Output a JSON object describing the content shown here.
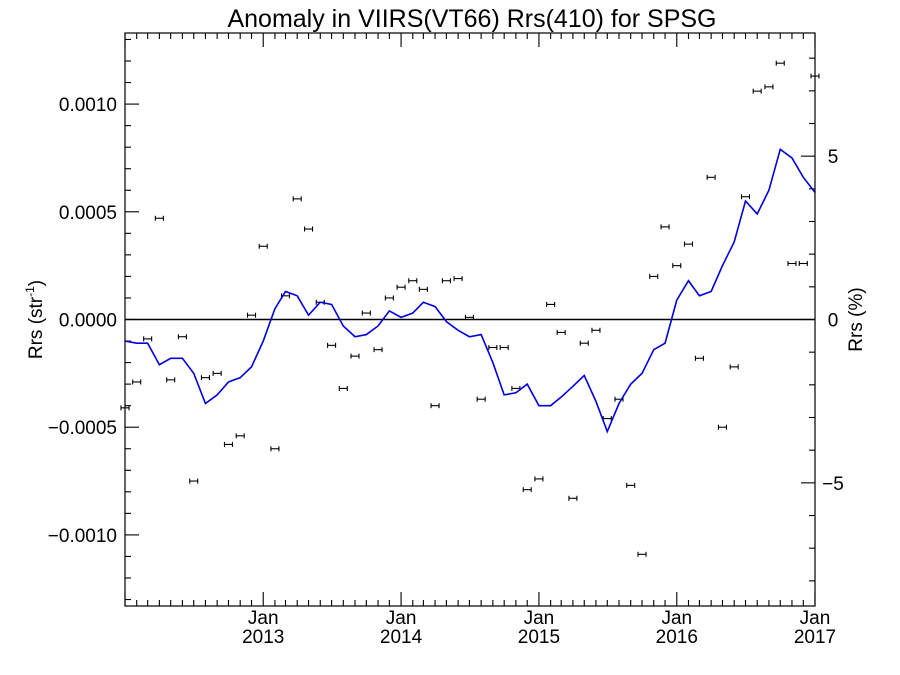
{
  "chart_data": {
    "type": "line",
    "title": "Anomaly in VIIRS(VT66) Rrs(410) for SPSG",
    "ylabel_left": "Rrs (str",
    "ylabel_left_superscript": "-1",
    "ylabel_left_close": ")",
    "ylabel_right": "Rrs (%)",
    "xlim": [
      "2012-01-01",
      "2017-01-01"
    ],
    "ylim_left": [
      -0.00133,
      0.00133
    ],
    "ylim_right": [
      -8.77,
      8.77
    ],
    "x_ticks": [
      {
        "date": "2013-01-01",
        "label_month": "Jan",
        "label_year": "2013"
      },
      {
        "date": "2014-01-01",
        "label_month": "Jan",
        "label_year": "2014"
      },
      {
        "date": "2015-01-01",
        "label_month": "Jan",
        "label_year": "2015"
      },
      {
        "date": "2016-01-01",
        "label_month": "Jan",
        "label_year": "2016"
      },
      {
        "date": "2017-01-01",
        "label_month": "Jan",
        "label_year": "2017"
      }
    ],
    "left_ticks": [
      {
        "value": 0.001,
        "label": "0.0010"
      },
      {
        "value": 0.0005,
        "label": "0.0005"
      },
      {
        "value": 0.0,
        "label": "0.0000"
      },
      {
        "value": -0.0005,
        "label": "−0.0005"
      },
      {
        "value": -0.001,
        "label": "−0.0010"
      }
    ],
    "right_ticks": [
      {
        "value": 5,
        "label": "5"
      },
      {
        "value": 0,
        "label": "0"
      },
      {
        "value": -5,
        "label": "−5"
      }
    ],
    "reference_line": 0,
    "series": [
      {
        "axis": "left",
        "style": "points-with-error-bars",
        "color": "#000000",
        "points": [
          {
            "x": "2012-01-01",
            "y": -0.00041
          },
          {
            "x": "2012-02-01",
            "y": -0.00029
          },
          {
            "x": "2012-03-01",
            "y": -9e-05
          },
          {
            "x": "2012-04-01",
            "y": 0.00047
          },
          {
            "x": "2012-05-01",
            "y": -0.00028
          },
          {
            "x": "2012-06-01",
            "y": -8e-05
          },
          {
            "x": "2012-07-01",
            "y": -0.00075
          },
          {
            "x": "2012-08-01",
            "y": -0.00027
          },
          {
            "x": "2012-09-01",
            "y": -0.00025
          },
          {
            "x": "2012-10-01",
            "y": -0.00058
          },
          {
            "x": "2012-11-01",
            "y": -0.00054
          },
          {
            "x": "2012-12-01",
            "y": 2e-05
          },
          {
            "x": "2013-01-01",
            "y": 0.00034
          },
          {
            "x": "2013-02-01",
            "y": -0.0006
          },
          {
            "x": "2013-03-01",
            "y": 0.00011
          },
          {
            "x": "2013-04-01",
            "y": 0.00056
          },
          {
            "x": "2013-05-01",
            "y": 0.00042
          },
          {
            "x": "2013-06-01",
            "y": 8e-05
          },
          {
            "x": "2013-07-01",
            "y": -0.00012
          },
          {
            "x": "2013-08-01",
            "y": -0.00032
          },
          {
            "x": "2013-09-01",
            "y": -0.00017
          },
          {
            "x": "2013-10-01",
            "y": 3e-05
          },
          {
            "x": "2013-11-01",
            "y": -0.00014
          },
          {
            "x": "2013-12-01",
            "y": 0.0001
          },
          {
            "x": "2014-01-01",
            "y": 0.00015
          },
          {
            "x": "2014-02-01",
            "y": 0.00018
          },
          {
            "x": "2014-03-01",
            "y": 0.00014
          },
          {
            "x": "2014-04-01",
            "y": -0.0004
          },
          {
            "x": "2014-05-01",
            "y": 0.00018
          },
          {
            "x": "2014-06-01",
            "y": 0.00019
          },
          {
            "x": "2014-07-01",
            "y": 1e-05
          },
          {
            "x": "2014-08-01",
            "y": -0.00037
          },
          {
            "x": "2014-09-01",
            "y": -0.00013
          },
          {
            "x": "2014-10-01",
            "y": -0.00013
          },
          {
            "x": "2014-11-01",
            "y": -0.00032
          },
          {
            "x": "2014-12-01",
            "y": -0.00079
          },
          {
            "x": "2015-01-01",
            "y": -0.00074
          },
          {
            "x": "2015-02-01",
            "y": 7e-05
          },
          {
            "x": "2015-03-01",
            "y": -6e-05
          },
          {
            "x": "2015-04-01",
            "y": -0.00083
          },
          {
            "x": "2015-05-01",
            "y": -0.00011
          },
          {
            "x": "2015-06-01",
            "y": -5e-05
          },
          {
            "x": "2015-07-01",
            "y": -0.00046
          },
          {
            "x": "2015-08-01",
            "y": -0.00037
          },
          {
            "x": "2015-09-01",
            "y": -0.00077
          },
          {
            "x": "2015-10-01",
            "y": -0.00109
          },
          {
            "x": "2015-11-01",
            "y": 0.0002
          },
          {
            "x": "2015-12-01",
            "y": 0.00043
          },
          {
            "x": "2016-01-01",
            "y": 0.00025
          },
          {
            "x": "2016-02-01",
            "y": 0.00035
          },
          {
            "x": "2016-03-01",
            "y": -0.00018
          },
          {
            "x": "2016-04-01",
            "y": 0.00066
          },
          {
            "x": "2016-05-01",
            "y": -0.0005
          },
          {
            "x": "2016-06-01",
            "y": -0.00022
          },
          {
            "x": "2016-07-01",
            "y": 0.00057
          },
          {
            "x": "2016-08-01",
            "y": 0.00106
          },
          {
            "x": "2016-09-01",
            "y": 0.00108
          },
          {
            "x": "2016-10-01",
            "y": 0.00119
          },
          {
            "x": "2016-11-01",
            "y": 0.00026
          },
          {
            "x": "2016-12-01",
            "y": 0.00026
          },
          {
            "x": "2017-01-01",
            "y": 0.00113
          }
        ]
      },
      {
        "axis": "left",
        "style": "line",
        "color": "#0000dd",
        "points": [
          {
            "x": "2012-01-01",
            "y": -0.0001
          },
          {
            "x": "2012-02-01",
            "y": -0.00011
          },
          {
            "x": "2012-03-01",
            "y": -0.00011
          },
          {
            "x": "2012-04-01",
            "y": -0.00021
          },
          {
            "x": "2012-05-01",
            "y": -0.00018
          },
          {
            "x": "2012-06-01",
            "y": -0.00018
          },
          {
            "x": "2012-07-01",
            "y": -0.00025
          },
          {
            "x": "2012-08-01",
            "y": -0.00039
          },
          {
            "x": "2012-09-01",
            "y": -0.00035
          },
          {
            "x": "2012-10-01",
            "y": -0.00029
          },
          {
            "x": "2012-11-01",
            "y": -0.00027
          },
          {
            "x": "2012-12-01",
            "y": -0.00022
          },
          {
            "x": "2013-01-01",
            "y": -0.0001
          },
          {
            "x": "2013-02-01",
            "y": 5e-05
          },
          {
            "x": "2013-03-01",
            "y": 0.00013
          },
          {
            "x": "2013-04-01",
            "y": 0.00011
          },
          {
            "x": "2013-05-01",
            "y": 2e-05
          },
          {
            "x": "2013-06-01",
            "y": 8e-05
          },
          {
            "x": "2013-07-01",
            "y": 7e-05
          },
          {
            "x": "2013-08-01",
            "y": -3e-05
          },
          {
            "x": "2013-09-01",
            "y": -8e-05
          },
          {
            "x": "2013-10-01",
            "y": -7e-05
          },
          {
            "x": "2013-11-01",
            "y": -3e-05
          },
          {
            "x": "2013-12-01",
            "y": 4e-05
          },
          {
            "x": "2014-01-01",
            "y": 1e-05
          },
          {
            "x": "2014-02-01",
            "y": 3e-05
          },
          {
            "x": "2014-03-01",
            "y": 8e-05
          },
          {
            "x": "2014-04-01",
            "y": 6e-05
          },
          {
            "x": "2014-05-01",
            "y": -1e-05
          },
          {
            "x": "2014-06-01",
            "y": -5e-05
          },
          {
            "x": "2014-07-01",
            "y": -8e-05
          },
          {
            "x": "2014-08-01",
            "y": -7e-05
          },
          {
            "x": "2014-09-01",
            "y": -0.0002
          },
          {
            "x": "2014-10-01",
            "y": -0.00035
          },
          {
            "x": "2014-11-01",
            "y": -0.00034
          },
          {
            "x": "2014-12-01",
            "y": -0.0003
          },
          {
            "x": "2015-01-01",
            "y": -0.0004
          },
          {
            "x": "2015-02-01",
            "y": -0.0004
          },
          {
            "x": "2015-03-01",
            "y": -0.00036
          },
          {
            "x": "2015-04-01",
            "y": -0.00031
          },
          {
            "x": "2015-05-01",
            "y": -0.00026
          },
          {
            "x": "2015-06-01",
            "y": -0.00038
          },
          {
            "x": "2015-07-01",
            "y": -0.00052
          },
          {
            "x": "2015-08-01",
            "y": -0.00039
          },
          {
            "x": "2015-09-01",
            "y": -0.0003
          },
          {
            "x": "2015-10-01",
            "y": -0.00025
          },
          {
            "x": "2015-11-01",
            "y": -0.00014
          },
          {
            "x": "2015-12-01",
            "y": -0.00011
          },
          {
            "x": "2016-01-01",
            "y": 9e-05
          },
          {
            "x": "2016-02-01",
            "y": 0.00018
          },
          {
            "x": "2016-03-01",
            "y": 0.00011
          },
          {
            "x": "2016-04-01",
            "y": 0.00013
          },
          {
            "x": "2016-05-01",
            "y": 0.00025
          },
          {
            "x": "2016-06-01",
            "y": 0.00036
          },
          {
            "x": "2016-07-01",
            "y": 0.00055
          },
          {
            "x": "2016-08-01",
            "y": 0.00049
          },
          {
            "x": "2016-09-01",
            "y": 0.0006
          },
          {
            "x": "2016-10-01",
            "y": 0.00079
          },
          {
            "x": "2016-11-01",
            "y": 0.00075
          },
          {
            "x": "2016-12-01",
            "y": 0.00066
          },
          {
            "x": "2017-01-01",
            "y": 0.00059
          }
        ]
      }
    ]
  }
}
